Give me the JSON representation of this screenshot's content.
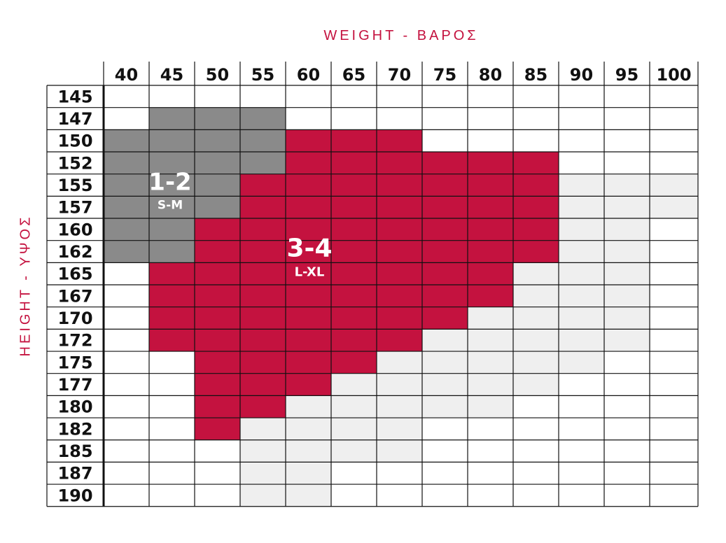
{
  "chart_data": {
    "type": "heatmap",
    "xlabel": "WEIGHT - ΒΑΡΟΣ",
    "ylabel": "HEIGHT - ΥΨΟΣ",
    "x_categories": [
      "40",
      "45",
      "50",
      "55",
      "60",
      "65",
      "70",
      "75",
      "80",
      "85",
      "90",
      "95",
      "100"
    ],
    "y_categories": [
      "145",
      "147",
      "150",
      "152",
      "155",
      "157",
      "160",
      "162",
      "165",
      "167",
      "170",
      "172",
      "175",
      "177",
      "180",
      "182",
      "185",
      "187",
      "190"
    ],
    "colors": {
      "size_1_2": "#8a8a8a",
      "size_3_4": "#c4123f",
      "outside": "#efefef",
      "grid": "#111111",
      "title": "#c4123f"
    },
    "size_zones": [
      {
        "code": "1-2",
        "size": "S-M",
        "cells": {
          "147": [
            "45",
            "50",
            "55"
          ],
          "150": [
            "40",
            "45",
            "50",
            "55"
          ],
          "152": [
            "40",
            "45",
            "50",
            "55"
          ],
          "155": [
            "40",
            "45",
            "50"
          ],
          "157": [
            "40",
            "45",
            "50"
          ],
          "160": [
            "40",
            "45"
          ],
          "162": [
            "40",
            "45"
          ]
        }
      },
      {
        "code": "3-4",
        "size": "L-XL",
        "cells": {
          "150": [
            "60",
            "65",
            "70"
          ],
          "152": [
            "60",
            "65",
            "70",
            "75",
            "80",
            "85"
          ],
          "155": [
            "55",
            "60",
            "65",
            "70",
            "75",
            "80",
            "85"
          ],
          "157": [
            "55",
            "60",
            "65",
            "70",
            "75",
            "80",
            "85"
          ],
          "160": [
            "50",
            "55",
            "60",
            "65",
            "70",
            "75",
            "80",
            "85"
          ],
          "162": [
            "50",
            "55",
            "60",
            "65",
            "70",
            "75",
            "80",
            "85"
          ],
          "165": [
            "45",
            "50",
            "55",
            "60",
            "65",
            "70",
            "75",
            "80"
          ],
          "167": [
            "45",
            "50",
            "55",
            "60",
            "65",
            "70",
            "75",
            "80"
          ],
          "170": [
            "45",
            "50",
            "55",
            "60",
            "65",
            "70",
            "75"
          ],
          "172": [
            "45",
            "50",
            "55",
            "60",
            "65",
            "70"
          ],
          "175": [
            "50",
            "55",
            "60",
            "65"
          ],
          "177": [
            "50",
            "55",
            "60"
          ],
          "180": [
            "50",
            "55"
          ],
          "182": [
            "50"
          ]
        }
      }
    ],
    "outside_cells": {
      "155": [
        "90",
        "95",
        "100"
      ],
      "157": [
        "90",
        "95",
        "100"
      ],
      "160": [
        "90",
        "95"
      ],
      "162": [
        "90",
        "95"
      ],
      "165": [
        "85",
        "90",
        "95"
      ],
      "167": [
        "85",
        "90",
        "95"
      ],
      "170": [
        "80",
        "85",
        "90",
        "95"
      ],
      "172": [
        "75",
        "80",
        "85",
        "90",
        "95"
      ],
      "175": [
        "70",
        "75",
        "80",
        "85",
        "90"
      ],
      "177": [
        "65",
        "70",
        "75",
        "80",
        "85"
      ],
      "180": [
        "60",
        "65",
        "70",
        "75",
        "80"
      ],
      "182": [
        "55",
        "60",
        "65",
        "70"
      ],
      "185": [
        "55",
        "60",
        "65",
        "70"
      ],
      "187": [
        "55",
        "60"
      ],
      "190": [
        "55",
        "60"
      ]
    }
  }
}
